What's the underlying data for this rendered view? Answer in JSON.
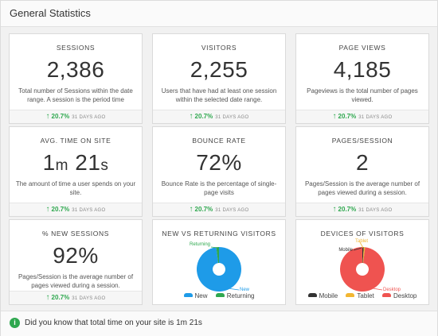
{
  "header": {
    "title": "General Statistics"
  },
  "footer_meta": {
    "change": "20.7%",
    "ago": "31 DAYS AGO"
  },
  "cards": [
    {
      "title": "SESSIONS",
      "value": "2,386",
      "desc": "Total number of Sessions within the date range. A session is the period time"
    },
    {
      "title": "VISITORS",
      "value": "2,255",
      "desc": "Users that have had at least one session within the selected date range."
    },
    {
      "title": "PAGE VIEWS",
      "value": "4,185",
      "desc": "Pageviews is the total number of pages viewed."
    },
    {
      "title": "AVG. TIME ON SITE",
      "value_main": "1",
      "value_unit1": "m",
      "value_main2": "21",
      "value_unit2": "s",
      "desc": "The amount of time a user spends on your site."
    },
    {
      "title": "BOUNCE RATE",
      "value": "72%",
      "desc": "Bounce Rate is the percentage of single-page visits"
    },
    {
      "title": "PAGES/SESSION",
      "value": "2",
      "desc": "Pages/Session is the average number of pages viewed during a session."
    },
    {
      "title": "% NEW SESSIONS",
      "value": "92%",
      "desc": "Pages/Session is the average number of pages viewed during a session."
    }
  ],
  "chart_data": [
    {
      "type": "pie",
      "title": "NEW VS RETURNING VISITORS",
      "categories": [
        "New",
        "Returning"
      ],
      "values": [
        98,
        2
      ],
      "colors": [
        "#1e9be8",
        "#2fa84f"
      ]
    },
    {
      "type": "pie",
      "title": "DEVICES OF VISITORS",
      "categories": [
        "Mobile",
        "Tablet",
        "Desktop"
      ],
      "values": [
        1,
        1,
        98
      ],
      "colors": [
        "#333333",
        "#f2b632",
        "#ef5350"
      ]
    }
  ],
  "legend_colors": {
    "new": "#1e9be8",
    "returning": "#2fa84f",
    "mobile": "#333333",
    "tablet": "#f2b632",
    "desktop": "#ef5350"
  },
  "tip": {
    "icon": "info-icon",
    "text": "Did you know that total time on your site is 1m 21s"
  }
}
